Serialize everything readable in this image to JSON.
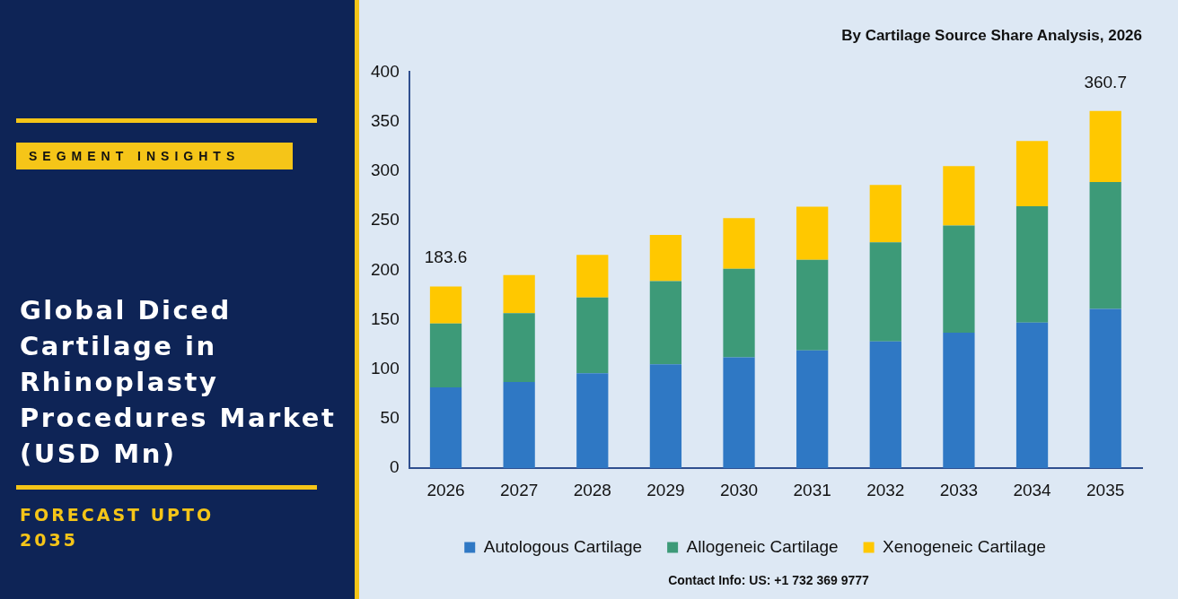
{
  "chart_data": {
    "type": "bar",
    "stacked": true,
    "title": "Global Diced Cartilage in Rhinoplasty Procedures Market (USD Mn)",
    "subtitle": "By Cartilage Source Share Analysis, 2026",
    "categories": [
      "2026",
      "2027",
      "2028",
      "2029",
      "2030",
      "2031",
      "2032",
      "2033",
      "2034",
      "2035"
    ],
    "series": [
      {
        "name": "Autologous Cartilage",
        "color": "#2f78c4",
        "values": [
          81.6,
          87,
          96,
          105,
          112,
          119,
          128,
          137,
          147,
          161
        ]
      },
      {
        "name": "Allogeneic Cartilage",
        "color": "#3d9a78",
        "values": [
          64.5,
          69.5,
          76.5,
          84,
          89.5,
          91.5,
          100,
          108,
          117.5,
          128
        ]
      },
      {
        "name": "Xenogeneic Cartilage",
        "color": "#ffc800",
        "values": [
          37.5,
          38.5,
          43,
          46.5,
          51,
          53.5,
          58,
          60,
          66,
          71.7
        ]
      }
    ],
    "totals": [
      "183.6",
      null,
      null,
      null,
      null,
      null,
      null,
      null,
      null,
      "360.7"
    ],
    "ylim": [
      0,
      400
    ],
    "yticks": [
      0,
      50,
      100,
      150,
      200,
      250,
      300,
      350,
      400
    ],
    "grid": false,
    "legend": "bottom",
    "annotations": [
      "SEGMENT INSIGHTS",
      "FORECAST UPTO 2035",
      "Contact Info: US: +1 732 369 9777"
    ]
  }
}
